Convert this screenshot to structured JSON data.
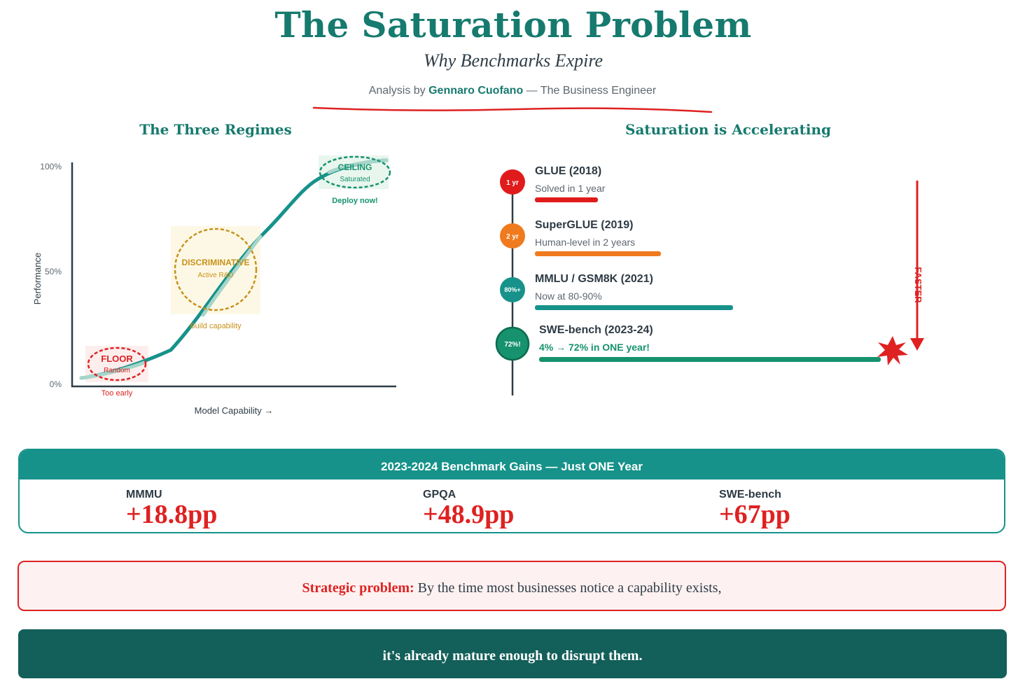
{
  "header": {
    "title": "The Saturation Problem",
    "subtitle": "Why Benchmarks Expire",
    "byline_prefix": "Analysis by",
    "author": "Gennaro Cuofano",
    "byline_suffix": "— The Business Engineer"
  },
  "regimes": {
    "title": "The Three Regimes",
    "y_axis_label": "Performance",
    "x_axis_label": "Model Capability →",
    "ticks": [
      "100%",
      "50%",
      "0%"
    ],
    "floor": {
      "name": "FLOOR",
      "sub": "Random",
      "note": "Too early"
    },
    "discriminative": {
      "name": "DISCRIMINATIVE",
      "sub": "Active R&D",
      "note": "Build capability"
    },
    "ceiling": {
      "name": "CEILING",
      "sub": "Saturated",
      "note": "Deploy now!"
    }
  },
  "accelerating": {
    "title": "Saturation is Accelerating",
    "arrow_label": "FASTER",
    "items": [
      {
        "badge": "1 yr",
        "name": "GLUE (2018)",
        "desc": "Solved in 1 year",
        "color": "#e01b1b",
        "bar_fraction": 0.18
      },
      {
        "badge": "2 yr",
        "name": "SuperGLUE (2019)",
        "desc": "Human-level in 2 years",
        "color": "#f07a1e",
        "bar_fraction": 0.36
      },
      {
        "badge": "80%+",
        "name": "MMLU / GSM8K (2021)",
        "desc": "Now at 80-90%",
        "color": "#16928a",
        "bar_fraction": 0.57
      },
      {
        "badge": "72%!",
        "name": "SWE-bench (2023-24)",
        "desc": "4% → 72% in ONE year!",
        "color": "#16926e",
        "bar_fraction": 1.0
      }
    ]
  },
  "gains": {
    "title": "2023-2024 Benchmark Gains — Just ONE Year",
    "items": [
      {
        "label": "MMMU",
        "value": "+18.8pp"
      },
      {
        "label": "GPQA",
        "value": "+48.9pp"
      },
      {
        "label": "SWE-bench",
        "value": "+67pp"
      }
    ]
  },
  "problem": {
    "lead": "Strategic problem:",
    "text": "By the time most businesses notice a capability exists,"
  },
  "conclusion": {
    "text": "it's already mature enough to disrupt them."
  },
  "colors": {
    "teal": "#167a6e",
    "red": "#df2121",
    "gold": "#c8921a",
    "dark_teal": "#135f5a"
  }
}
